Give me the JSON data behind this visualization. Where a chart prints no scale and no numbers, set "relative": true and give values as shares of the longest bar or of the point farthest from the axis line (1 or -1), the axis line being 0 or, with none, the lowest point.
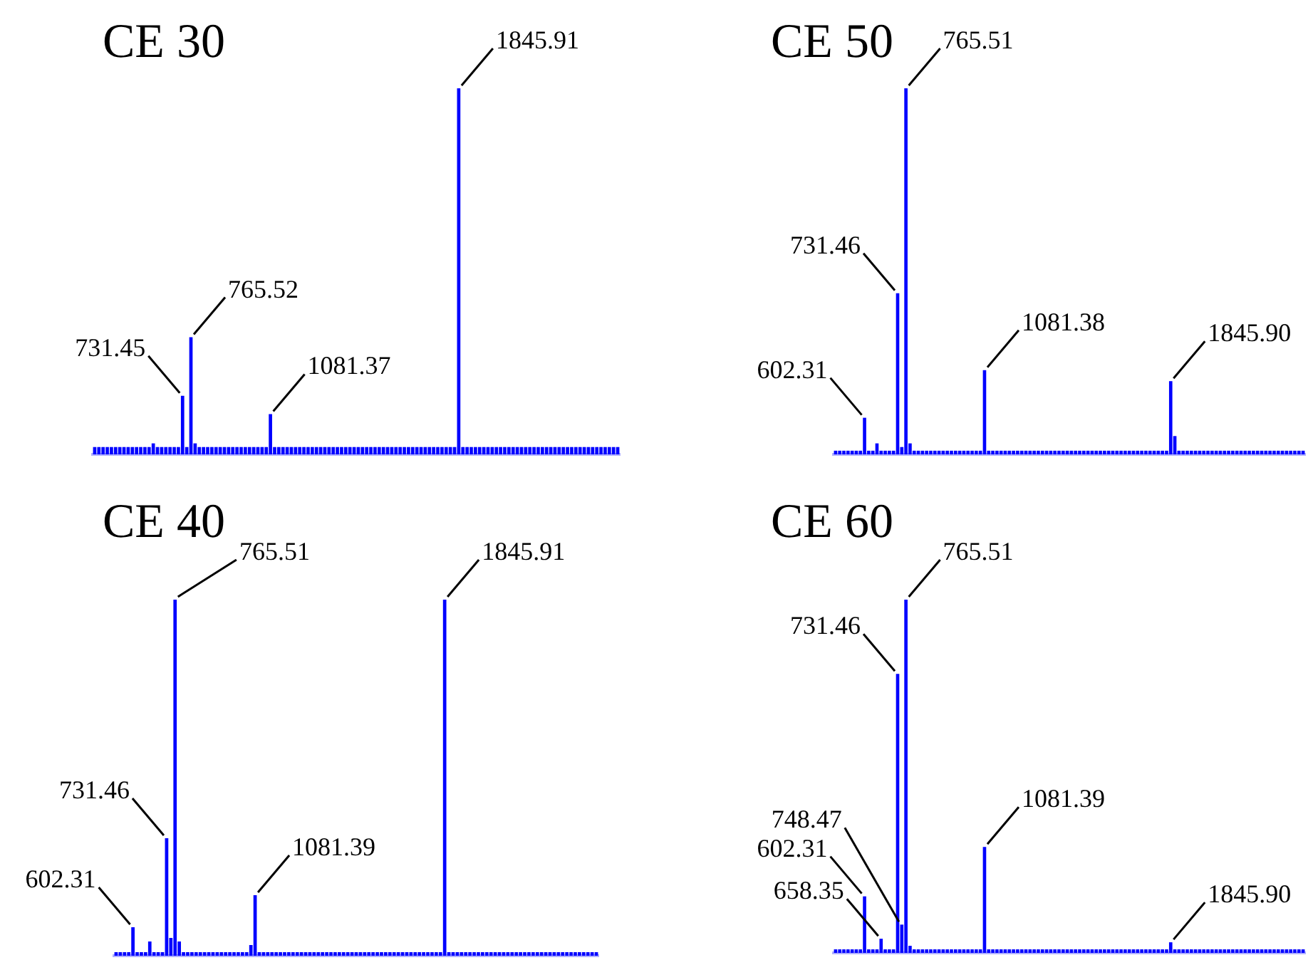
{
  "chart_data": [
    {
      "type": "bar",
      "title": "CE 30",
      "relative": true,
      "color": "#0000ff",
      "categories": [
        null,
        null,
        null,
        null,
        null,
        null,
        null,
        null,
        null,
        null,
        null,
        null,
        null,
        null,
        null,
        null,
        null,
        null,
        null,
        null,
        null,
        null,
        null,
        null,
        null,
        null,
        null,
        null,
        null,
        null,
        null,
        null,
        null,
        null,
        null,
        null,
        null,
        null,
        null,
        null,
        null,
        null,
        null,
        null,
        null,
        null,
        null,
        null,
        null,
        null,
        null,
        null,
        null,
        null,
        null,
        null,
        null,
        null,
        null,
        null,
        null,
        null,
        null,
        null,
        null,
        null,
        null,
        null,
        null,
        null,
        null,
        null,
        null,
        null,
        null,
        null,
        null,
        null,
        null,
        null,
        null,
        null,
        null,
        null,
        null,
        null,
        null,
        null,
        null,
        null,
        null,
        null,
        null,
        null,
        null,
        null,
        null,
        null,
        null,
        null,
        null,
        null,
        null,
        null,
        null,
        null,
        null,
        null,
        null,
        null,
        null,
        null,
        null,
        null,
        null,
        null,
        null,
        null,
        null,
        null,
        null,
        null,
        null,
        null,
        null,
        null
      ],
      "values": [
        0.02,
        0.02,
        0.02,
        0.02,
        0.02,
        0.02,
        0.02,
        0.02,
        0.02,
        0.02,
        0.02,
        0.02,
        0.02,
        0.02,
        0.03,
        0.02,
        0.02,
        0.02,
        0.02,
        0.02,
        0.02,
        0.16,
        0.02,
        0.32,
        0.03,
        0.02,
        0.02,
        0.02,
        0.02,
        0.02,
        0.02,
        0.02,
        0.02,
        0.02,
        0.02,
        0.02,
        0.02,
        0.02,
        0.02,
        0.02,
        0.02,
        0.02,
        0.11,
        0.02,
        0.02,
        0.02,
        0.02,
        0.02,
        0.02,
        0.02,
        0.02,
        0.02,
        0.02,
        0.02,
        0.02,
        0.02,
        0.02,
        0.02,
        0.02,
        0.02,
        0.02,
        0.02,
        0.02,
        0.02,
        0.02,
        0.02,
        0.02,
        0.02,
        0.02,
        0.02,
        0.02,
        0.02,
        0.02,
        0.02,
        0.02,
        0.02,
        0.02,
        0.02,
        0.02,
        0.02,
        0.02,
        0.02,
        0.02,
        0.02,
        0.02,
        0.02,
        0.02,
        1,
        0.02,
        0.02,
        0.02,
        0.02,
        0.02,
        0.02,
        0.02,
        0.02,
        0.02,
        0.02,
        0.02,
        0.02,
        0.02,
        0.02,
        0.02,
        0.02,
        0.02,
        0.02,
        0.02,
        0.02,
        0.02,
        0.02,
        0.02,
        0.02,
        0.02,
        0.02,
        0.02,
        0.02,
        0.02,
        0.02,
        0.02,
        0.02,
        0.02,
        0.02,
        0.02,
        0.02,
        0.02,
        0.02
      ],
      "annotations": [
        "731.45",
        "765.52",
        "1081.37",
        "1845.91"
      ]
    },
    {
      "type": "bar",
      "title": "CE 50",
      "relative": true,
      "color": "#0000ff",
      "categories": [
        null,
        null,
        null,
        null,
        null,
        null,
        null,
        null,
        null,
        null,
        null,
        null,
        null,
        null,
        null,
        null,
        null,
        null,
        null,
        null,
        null,
        null,
        null,
        null,
        null,
        null,
        null,
        null,
        null,
        null,
        null,
        null,
        null,
        null,
        null,
        null,
        null,
        null,
        null,
        null,
        null,
        null,
        null,
        null,
        null,
        null,
        null,
        null,
        null,
        null,
        null,
        null,
        null,
        null,
        null,
        null,
        null,
        null,
        null,
        null,
        null,
        null,
        null,
        null,
        null,
        null,
        null,
        null,
        null,
        null,
        null,
        null,
        null,
        null,
        null,
        null,
        null,
        null,
        null,
        null,
        null,
        null,
        null,
        null,
        null,
        null,
        null,
        null,
        null,
        null,
        null,
        null,
        null,
        null,
        null,
        null,
        null,
        null,
        null,
        null,
        null,
        null,
        null,
        null,
        null,
        null,
        null,
        null,
        null,
        null,
        null,
        null,
        null,
        null
      ],
      "values": [
        0.01,
        0.01,
        0.01,
        0.01,
        0.01,
        0.01,
        0.01,
        0.1,
        0.01,
        0.01,
        0.03,
        0.01,
        0.01,
        0.01,
        0.01,
        0.44,
        0.02,
        1,
        0.03,
        0.01,
        0.01,
        0.01,
        0.01,
        0.01,
        0.01,
        0.01,
        0.01,
        0.01,
        0.01,
        0.01,
        0.01,
        0.01,
        0.01,
        0.01,
        0.01,
        0.01,
        0.23,
        0.01,
        0.01,
        0.01,
        0.01,
        0.01,
        0.01,
        0.01,
        0.01,
        0.01,
        0.01,
        0.01,
        0.01,
        0.01,
        0.01,
        0.01,
        0.01,
        0.01,
        0.01,
        0.01,
        0.01,
        0.01,
        0.01,
        0.01,
        0.01,
        0.01,
        0.01,
        0.01,
        0.01,
        0.01,
        0.01,
        0.01,
        0.01,
        0.01,
        0.01,
        0.01,
        0.01,
        0.01,
        0.01,
        0.01,
        0.01,
        0.01,
        0.01,
        0.01,
        0.01,
        0.2,
        0.05,
        0.01,
        0.01,
        0.01,
        0.01,
        0.01,
        0.01,
        0.01,
        0.01,
        0.01,
        0.01,
        0.01,
        0.01,
        0.01,
        0.01,
        0.01,
        0.01,
        0.01,
        0.01,
        0.01,
        0.01,
        0.01,
        0.01,
        0.01,
        0.01,
        0.01,
        0.01,
        0.01,
        0.01,
        0.01,
        0.01,
        0.01
      ],
      "annotations": [
        "602.31",
        "731.46",
        "765.51",
        "1081.38",
        "1845.90"
      ]
    },
    {
      "type": "bar",
      "title": "CE 40",
      "relative": true,
      "color": "#0000ff",
      "categories": [
        null,
        null,
        null,
        null,
        null,
        null,
        null,
        null,
        null,
        null,
        null,
        null,
        null,
        null,
        null,
        null,
        null,
        null,
        null,
        null,
        null,
        null,
        null,
        null,
        null,
        null,
        null,
        null,
        null,
        null,
        null,
        null,
        null,
        null,
        null,
        null,
        null,
        null,
        null,
        null,
        null,
        null,
        null,
        null,
        null,
        null,
        null,
        null,
        null,
        null,
        null,
        null,
        null,
        null,
        null,
        null,
        null,
        null,
        null,
        null,
        null,
        null,
        null,
        null,
        null,
        null,
        null,
        null,
        null,
        null,
        null,
        null,
        null,
        null,
        null,
        null,
        null,
        null,
        null,
        null,
        null,
        null,
        null,
        null,
        null,
        null,
        null,
        null,
        null,
        null,
        null,
        null,
        null,
        null,
        null,
        null,
        null,
        null,
        null,
        null,
        null,
        null,
        null,
        null,
        null,
        null,
        null,
        null,
        null,
        null,
        null,
        null,
        null,
        null,
        null
      ],
      "values": [
        0.01,
        0.01,
        0.01,
        0.01,
        0.08,
        0.01,
        0.01,
        0.01,
        0.04,
        0.01,
        0.01,
        0.01,
        0.33,
        0.05,
        1,
        0.04,
        0.01,
        0.01,
        0.01,
        0.01,
        0.01,
        0.01,
        0.01,
        0.01,
        0.01,
        0.01,
        0.01,
        0.01,
        0.01,
        0.01,
        0.01,
        0.01,
        0.03,
        0.17,
        0.01,
        0.01,
        0.01,
        0.01,
        0.01,
        0.01,
        0.01,
        0.01,
        0.01,
        0.01,
        0.01,
        0.01,
        0.01,
        0.01,
        0.01,
        0.01,
        0.01,
        0.01,
        0.01,
        0.01,
        0.01,
        0.01,
        0.01,
        0.01,
        0.01,
        0.01,
        0.01,
        0.01,
        0.01,
        0.01,
        0.01,
        0.01,
        0.01,
        0.01,
        0.01,
        0.01,
        0.01,
        0.01,
        0.01,
        0.01,
        0.01,
        0.01,
        0.01,
        0.01,
        1,
        0.01,
        0.01,
        0.01,
        0.01,
        0.01,
        0.01,
        0.01,
        0.01,
        0.01,
        0.01,
        0.01,
        0.01,
        0.01,
        0.01,
        0.01,
        0.01,
        0.01,
        0.01,
        0.01,
        0.01,
        0.01,
        0.01,
        0.01,
        0.01,
        0.01,
        0.01,
        0.01,
        0.01,
        0.01,
        0.01,
        0.01,
        0.01,
        0.01,
        0.01,
        0.01,
        0.01
      ],
      "annotations": [
        "602.31",
        "731.46",
        "765.51",
        "1081.39",
        "1845.91"
      ]
    },
    {
      "type": "bar",
      "title": "CE 60",
      "relative": true,
      "color": "#0000ff",
      "categories": [
        null,
        null,
        null,
        null,
        null,
        null,
        null,
        null,
        null,
        null,
        null,
        null,
        null,
        null,
        null,
        null,
        null,
        null,
        null,
        null,
        null,
        null,
        null,
        null,
        null,
        null,
        null,
        null,
        null,
        null,
        null,
        null,
        null,
        null,
        null,
        null,
        null,
        null,
        null,
        null,
        null,
        null,
        null,
        null,
        null,
        null,
        null,
        null,
        null,
        null,
        null,
        null,
        null,
        null,
        null,
        null,
        null,
        null,
        null,
        null,
        null,
        null,
        null,
        null,
        null,
        null,
        null,
        null,
        null,
        null,
        null,
        null,
        null,
        null,
        null,
        null,
        null,
        null,
        null,
        null,
        null,
        null,
        null,
        null,
        null,
        null,
        null,
        null,
        null,
        null,
        null,
        null,
        null,
        null,
        null,
        null,
        null,
        null,
        null,
        null,
        null,
        null,
        null,
        null,
        null,
        null,
        null,
        null,
        null,
        null,
        null,
        null,
        null,
        null
      ],
      "values": [
        0.01,
        0.01,
        0.01,
        0.01,
        0.01,
        0.01,
        0.01,
        0.16,
        0.01,
        0.01,
        0.01,
        0.04,
        0.01,
        0.01,
        0.01,
        0.79,
        0.08,
        1,
        0.02,
        0.01,
        0.01,
        0.01,
        0.01,
        0.01,
        0.01,
        0.01,
        0.01,
        0.01,
        0.01,
        0.01,
        0.01,
        0.01,
        0.01,
        0.01,
        0.01,
        0.01,
        0.3,
        0.01,
        0.01,
        0.01,
        0.01,
        0.01,
        0.01,
        0.01,
        0.01,
        0.01,
        0.01,
        0.01,
        0.01,
        0.01,
        0.01,
        0.01,
        0.01,
        0.01,
        0.01,
        0.01,
        0.01,
        0.01,
        0.01,
        0.01,
        0.01,
        0.01,
        0.01,
        0.01,
        0.01,
        0.01,
        0.01,
        0.01,
        0.01,
        0.01,
        0.01,
        0.01,
        0.01,
        0.01,
        0.01,
        0.01,
        0.01,
        0.01,
        0.01,
        0.01,
        0.01,
        0.03,
        0.01,
        0.01,
        0.01,
        0.01,
        0.01,
        0.01,
        0.01,
        0.01,
        0.01,
        0.01,
        0.01,
        0.01,
        0.01,
        0.01,
        0.01,
        0.01,
        0.01,
        0.01,
        0.01,
        0.01,
        0.01,
        0.01,
        0.01,
        0.01,
        0.01,
        0.01,
        0.01,
        0.01,
        0.01,
        0.01,
        0.01,
        0.01
      ],
      "annotations": [
        "602.31",
        "658.35",
        "731.46",
        "748.47",
        "765.51",
        "1081.39",
        "1845.90"
      ]
    }
  ]
}
